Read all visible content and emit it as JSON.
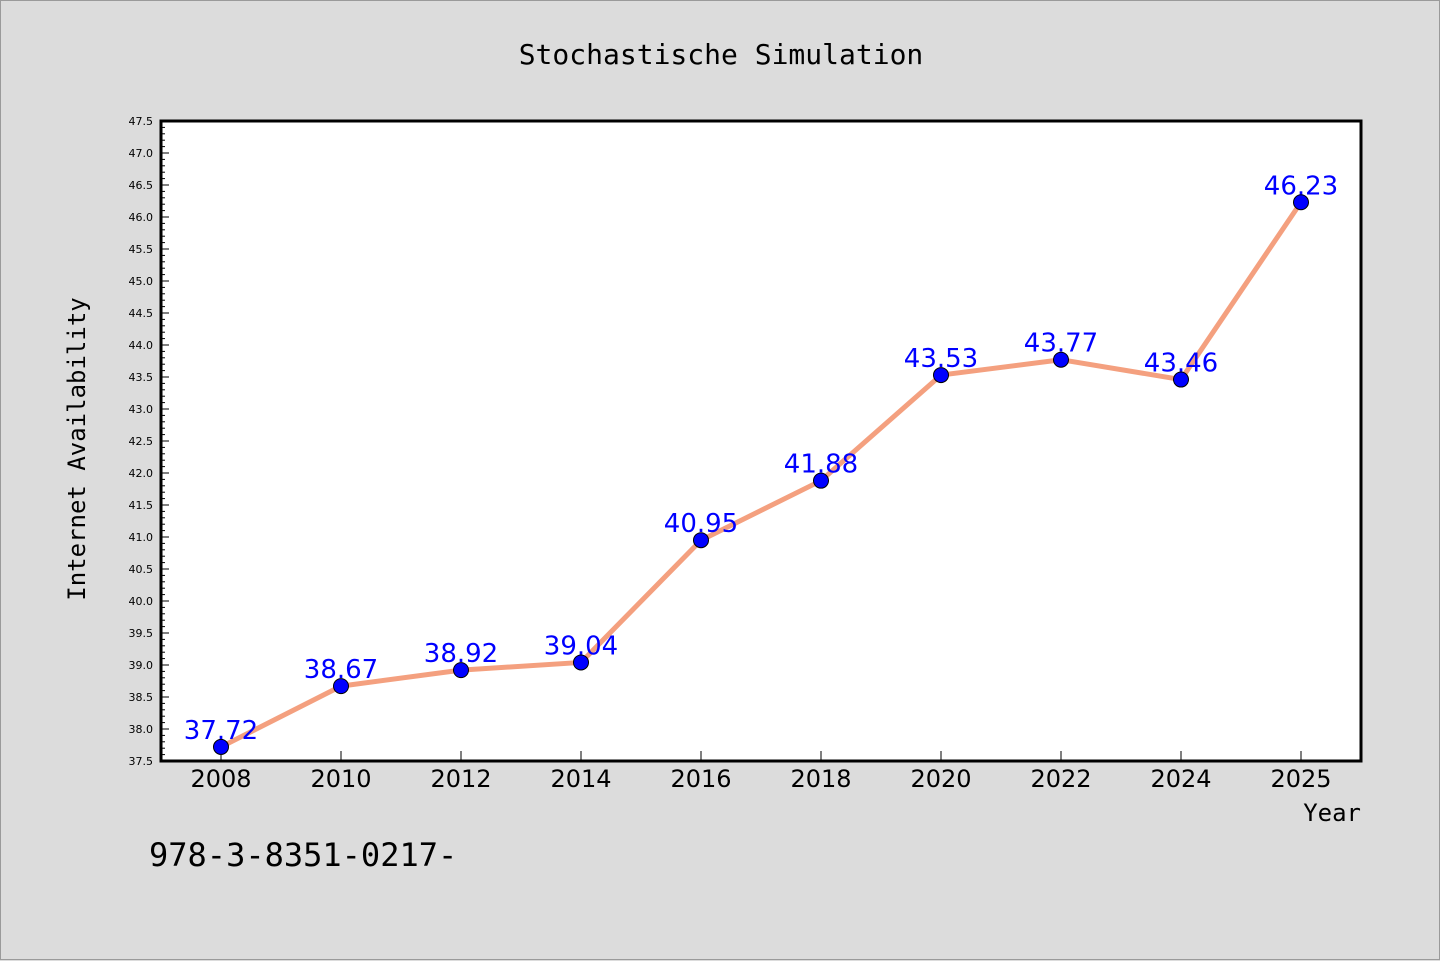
{
  "chart_data": {
    "type": "line",
    "title": "Stochastische Simulation",
    "xlabel": "Year",
    "ylabel": "Internet Availability",
    "categories": [
      "2008",
      "2010",
      "2012",
      "2014",
      "2016",
      "2018",
      "2020",
      "2022",
      "2024",
      "2025"
    ],
    "series": [
      {
        "values": [
          37.72,
          38.67,
          38.92,
          39.04,
          40.95,
          41.88,
          43.53,
          43.77,
          43.46,
          46.23
        ],
        "labels": [
          "37.72",
          "38.67",
          "38.92",
          "39.04",
          "40.95",
          "41.88",
          "43.53",
          "43.77",
          "43.46",
          "46.23"
        ]
      }
    ],
    "ylim": [
      37.5,
      47.5
    ],
    "y_ticks": [
      "37.5",
      "38.0",
      "38.5",
      "39.0",
      "39.5",
      "40.0",
      "40.5",
      "41.0",
      "41.5",
      "42.0",
      "42.5",
      "43.0",
      "43.5",
      "44.0",
      "44.5",
      "45.0",
      "45.5",
      "46.0",
      "46.5",
      "47.0",
      "47.5"
    ],
    "grid": false,
    "legend": "none",
    "line_color": "#f4a07f",
    "marker_color": "#0000ff",
    "label_color": "#0000ff",
    "background_color": "#dcdcdc",
    "plot_background_color": "#ffffff"
  },
  "footer": {
    "text": "978-3-8351-0217-"
  }
}
